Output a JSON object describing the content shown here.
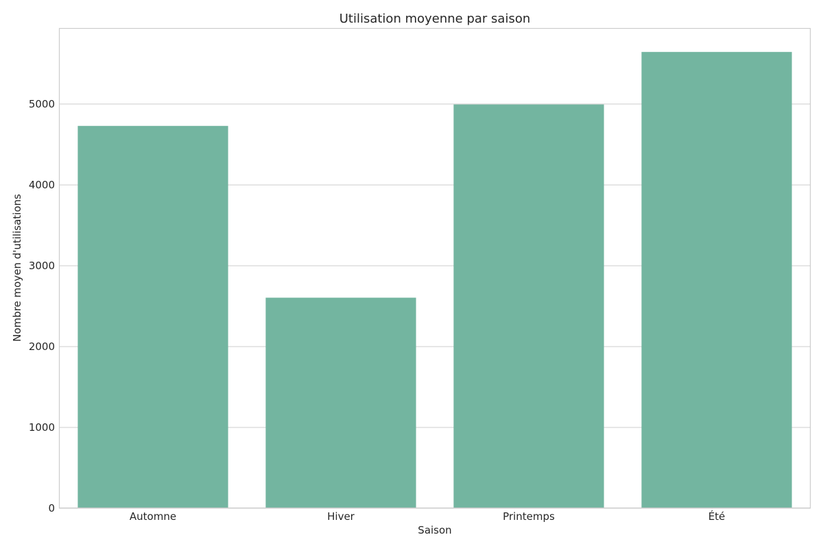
{
  "chart_data": {
    "type": "bar",
    "title": "Utilisation moyenne par saison",
    "xlabel": "Saison",
    "ylabel": "Nombre moyen d'utilisations",
    "categories": [
      "Automne",
      "Hiver",
      "Printemps",
      "Été"
    ],
    "values": [
      4730,
      2605,
      4995,
      5645
    ],
    "ylim": [
      0,
      5940
    ],
    "yticks": [
      "0",
      "1000",
      "2000",
      "3000",
      "4000",
      "5000"
    ],
    "grid": "horizontal",
    "bar_color": "#73b5a0",
    "grid_color": "#cccccc",
    "text_color": "#262626"
  }
}
